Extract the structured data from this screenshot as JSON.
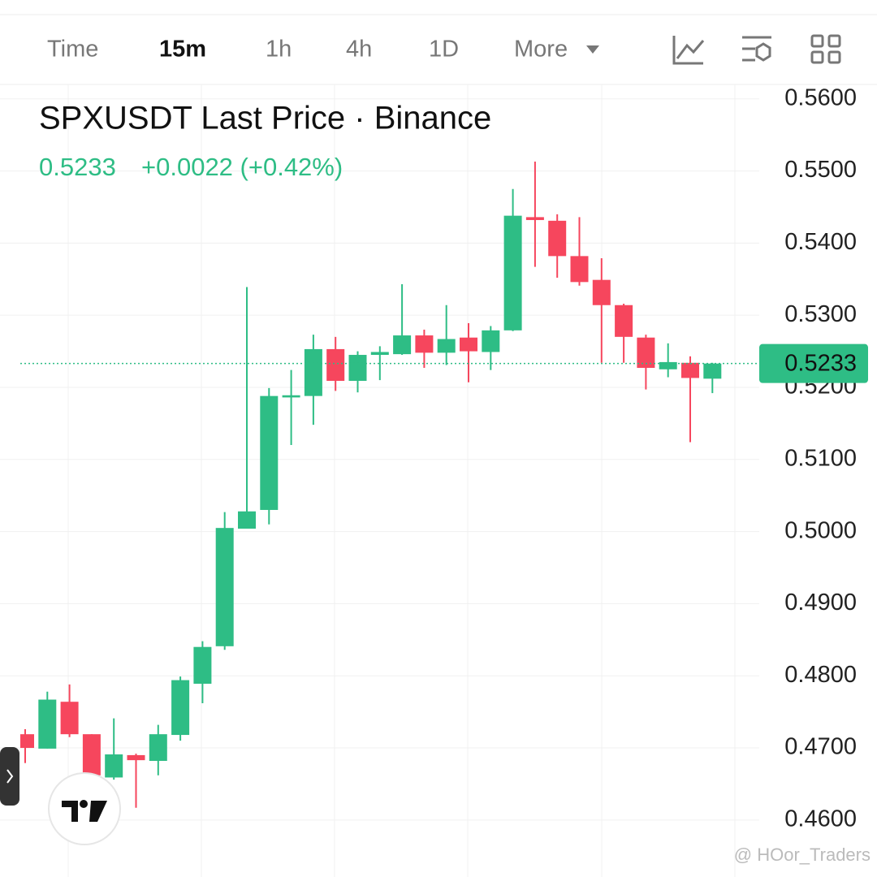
{
  "toolbar": {
    "tabs": [
      "Time",
      "15m",
      "1h",
      "4h",
      "1D",
      "More"
    ],
    "active": "15m"
  },
  "chart_data": {
    "type": "candlestick",
    "title": "SPXUSDT Last Price · Binance",
    "last_value": 0.5233,
    "change_label": "+0.0022 (+0.42%)",
    "up_color": "#2ebd85",
    "down_color": "#f6465d",
    "open": [
      0.4719,
      0.4699,
      0.4764,
      0.4719,
      0.4659,
      0.469,
      0.4682,
      0.4718,
      0.4789,
      0.4841,
      0.5004,
      0.503,
      0.5186,
      0.5188,
      0.5253,
      0.5209,
      0.5245,
      0.5246,
      0.5272,
      0.5248,
      0.5269,
      0.5249,
      0.5279,
      0.5436,
      0.5431,
      0.5382,
      0.5349,
      0.5314,
      0.5269,
      0.5225,
      0.5234,
      0.5212
    ],
    "high": [
      0.4726,
      0.4778,
      0.4788,
      0.4719,
      0.4741,
      0.4692,
      0.4732,
      0.4799,
      0.4848,
      0.5027,
      0.5339,
      0.5199,
      0.5224,
      0.5273,
      0.527,
      0.525,
      0.5257,
      0.5343,
      0.528,
      0.5314,
      0.5289,
      0.5285,
      0.5475,
      0.5513,
      0.544,
      0.5436,
      0.5379,
      0.5316,
      0.5273,
      0.5261,
      0.5243,
      0.5234
    ],
    "low": [
      0.4679,
      0.4699,
      0.4715,
      0.465,
      0.4656,
      0.4617,
      0.4662,
      0.471,
      0.4762,
      0.4836,
      0.5004,
      0.501,
      0.512,
      0.5148,
      0.5195,
      0.5193,
      0.521,
      0.5245,
      0.5227,
      0.5231,
      0.5207,
      0.5224,
      0.5278,
      0.5367,
      0.5352,
      0.5341,
      0.5234,
      0.5234,
      0.5197,
      0.5214,
      0.5124,
      0.5192
    ],
    "close": [
      0.47,
      0.4767,
      0.4719,
      0.4662,
      0.4691,
      0.4683,
      0.4719,
      0.4794,
      0.484,
      0.5005,
      0.5028,
      0.5188,
      0.5189,
      0.5253,
      0.5209,
      0.5245,
      0.5249,
      0.5272,
      0.5248,
      0.5267,
      0.525,
      0.5279,
      0.5438,
      0.5432,
      0.5382,
      0.5346,
      0.5314,
      0.527,
      0.5227,
      0.5235,
      0.5213,
      0.5233
    ],
    "ylim": [
      0.4521,
      0.562
    ],
    "yticks": [
      {
        "value": 0.46,
        "label": "0.4600"
      },
      {
        "value": 0.47,
        "label": "0.4700"
      },
      {
        "value": 0.48,
        "label": "0.4800"
      },
      {
        "value": 0.49,
        "label": "0.4900"
      },
      {
        "value": 0.5,
        "label": "0.5000"
      },
      {
        "value": 0.51,
        "label": "0.5100"
      },
      {
        "value": 0.52,
        "label": "0.5200"
      },
      {
        "value": 0.53,
        "label": "0.5300"
      },
      {
        "value": 0.54,
        "label": "0.5400"
      },
      {
        "value": 0.55,
        "label": "0.5500"
      },
      {
        "value": 0.56,
        "label": "0.5600"
      }
    ],
    "price_line": {
      "value": 0.5233,
      "label": "0.5233"
    },
    "grid": true
  },
  "watermark": "@ HOor_Traders"
}
